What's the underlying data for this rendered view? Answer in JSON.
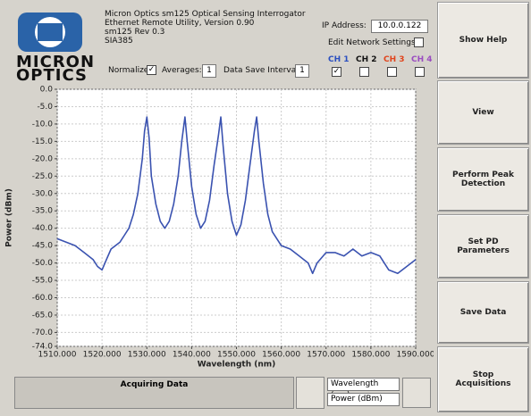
{
  "header": {
    "logo_lines": [
      "MICRON",
      "OPTICS"
    ],
    "info_lines": [
      "Micron Optics sm125 Optical Sensing Interrogator",
      "Ethernet Remote Utility, Version 0.90",
      "sm125 Rev 0.3",
      "SIA385"
    ],
    "ip_label": "IP Address:",
    "ip_value": "10.0.0.122",
    "edit_network_label": "Edit Network Settings:",
    "edit_network_checked": false,
    "normalize_label": "Normalize:",
    "normalize_checked": true,
    "averages_label": "Averages:",
    "averages_value": "1",
    "save_interval_label": "Data Save Interval:",
    "save_interval_value": "1",
    "channels": [
      {
        "label": "CH 1",
        "color": "#2a4fc0",
        "checked": true
      },
      {
        "label": "CH 2",
        "color": "#111111",
        "checked": false
      },
      {
        "label": "CH 3",
        "color": "#e0441c",
        "checked": false
      },
      {
        "label": "CH 4",
        "color": "#9a4cc0",
        "checked": false
      }
    ]
  },
  "buttons": [
    "Show Help",
    "View",
    "Perform Peak Detection",
    "Set PD Parameters",
    "Save Data",
    "Stop Acquisitions"
  ],
  "status": {
    "message": "Acquiring Data",
    "x_field": "Wavelength (nm)",
    "y_field": "Power (dBm)"
  },
  "chart_data": {
    "type": "line",
    "x_label": "Wavelength (nm)",
    "y_label": "Power (dBm)",
    "color": "#3a52b0",
    "grid": true,
    "xlim": [
      1510,
      1590
    ],
    "ylim": [
      -74,
      0
    ],
    "xticks": [
      {
        "value": 1510,
        "label": "1510.000"
      },
      {
        "value": 1520,
        "label": "1520.000"
      },
      {
        "value": 1530,
        "label": "1530.000"
      },
      {
        "value": 1540,
        "label": "1540.000"
      },
      {
        "value": 1550,
        "label": "1550.000"
      },
      {
        "value": 1560,
        "label": "1560.000"
      },
      {
        "value": 1570,
        "label": "1570.000"
      },
      {
        "value": 1580,
        "label": "1580.000"
      },
      {
        "value": 1590,
        "label": "1590.000"
      }
    ],
    "yticks": [
      {
        "value": 0,
        "label": "0.0"
      },
      {
        "value": -5,
        "label": "-5.0"
      },
      {
        "value": -10,
        "label": "-10.0"
      },
      {
        "value": -15,
        "label": "-15.0"
      },
      {
        "value": -20,
        "label": "-20.0"
      },
      {
        "value": -25,
        "label": "-25.0"
      },
      {
        "value": -30,
        "label": "-30.0"
      },
      {
        "value": -35,
        "label": "-35.0"
      },
      {
        "value": -40,
        "label": "-40.0"
      },
      {
        "value": -45,
        "label": "-45.0"
      },
      {
        "value": -50,
        "label": "-50.0"
      },
      {
        "value": -55,
        "label": "-55.0"
      },
      {
        "value": -60,
        "label": "-60.0"
      },
      {
        "value": -65,
        "label": "-65.0"
      },
      {
        "value": -70,
        "label": "-70.0"
      },
      {
        "value": -74,
        "label": "-74.0"
      }
    ],
    "x": [
      1510,
      1512,
      1514,
      1516,
      1518,
      1519,
      1520,
      1521,
      1522,
      1523,
      1524,
      1525,
      1526,
      1527,
      1528,
      1529,
      1529.5,
      1530,
      1530.5,
      1531,
      1532,
      1533,
      1534,
      1535,
      1536,
      1537,
      1537.8,
      1538.5,
      1539,
      1540,
      1541,
      1542,
      1543,
      1544,
      1545,
      1546,
      1546.5,
      1547,
      1548,
      1549,
      1550,
      1551,
      1552,
      1553,
      1554,
      1554.5,
      1555,
      1556,
      1557,
      1558,
      1560,
      1562,
      1564,
      1566,
      1567,
      1568,
      1570,
      1572,
      1574,
      1576,
      1578,
      1580,
      1582,
      1584,
      1586,
      1588,
      1590
    ],
    "values": [
      -43,
      -44,
      -45,
      -47,
      -49,
      -51,
      -52,
      -49,
      -46,
      -45,
      -44,
      -42,
      -40,
      -36,
      -30,
      -20,
      -12,
      -8,
      -14,
      -25,
      -33,
      -38,
      -40,
      -38,
      -33,
      -25,
      -15,
      -8,
      -15,
      -28,
      -36,
      -40,
      -38,
      -32,
      -22,
      -13,
      -8,
      -16,
      -30,
      -38,
      -42,
      -39,
      -32,
      -22,
      -12,
      -8,
      -15,
      -27,
      -36,
      -41,
      -45,
      -46,
      -48,
      -50,
      -53,
      -50,
      -47,
      -47,
      -48,
      -46,
      -48,
      -47,
      -48,
      -52,
      -53,
      -51,
      -49
    ]
  }
}
